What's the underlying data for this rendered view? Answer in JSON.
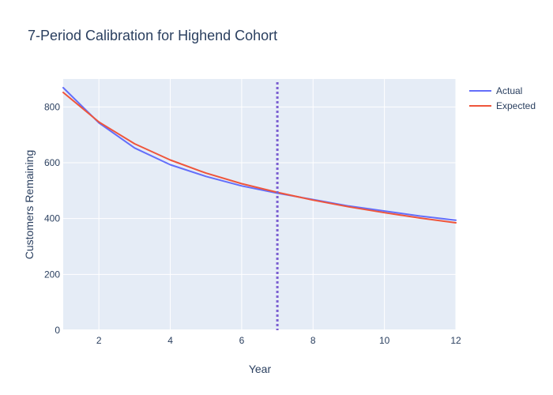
{
  "chart_data": {
    "type": "line",
    "title": "7-Period Calibration for Highend Cohort",
    "xlabel": "Year",
    "ylabel": "Customers Remaining",
    "xlim": [
      1,
      12
    ],
    "ylim": [
      0,
      900
    ],
    "xticks": [
      2,
      4,
      6,
      8,
      10,
      12
    ],
    "yticks": [
      0,
      200,
      400,
      600,
      800
    ],
    "grid": true,
    "legend_position": "top-right",
    "background_color": "#e5ecf6",
    "x": [
      1,
      2,
      3,
      4,
      5,
      6,
      7,
      8,
      9,
      10,
      11,
      12
    ],
    "series": [
      {
        "name": "Actual",
        "color": "#636efa",
        "values": [
          869,
          743,
          653,
          593,
          551,
          517,
          491,
          468,
          445,
          427,
          409,
          394
        ]
      },
      {
        "name": "Expected",
        "color": "#ef553b",
        "values": [
          852,
          746,
          668,
          610,
          563,
          525,
          494,
          466,
          442,
          421,
          402,
          385
        ]
      }
    ],
    "calibration_line": {
      "x": 7,
      "color": "#7b5fd1",
      "style": "dotted"
    }
  }
}
